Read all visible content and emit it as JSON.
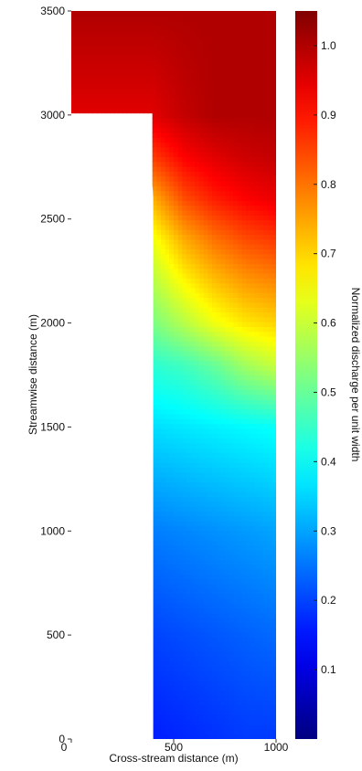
{
  "chart_data": {
    "type": "heatmap",
    "title": "",
    "xlabel": "Cross-stream distance (m)",
    "ylabel": "Streamwise distance (m)",
    "colorbar_label": "Normalized discharge per unit width",
    "xlim": [
      0,
      1000
    ],
    "ylim": [
      0,
      3500
    ],
    "x_ticks": [
      0,
      500,
      1000
    ],
    "y_ticks": [
      0,
      500,
      1000,
      1500,
      2000,
      2500,
      3000,
      3500
    ],
    "colorbar_range": [
      0,
      1.05
    ],
    "colorbar_ticks": [
      0.1,
      0.2,
      0.3,
      0.4,
      0.5,
      0.6,
      0.7,
      0.8,
      0.9,
      1.0
    ],
    "colormap": "jet",
    "obstacle": {
      "description_shape": "quarter-rounded headland",
      "straight_edge_x": 400,
      "top_y": 3000,
      "corner_radius": 400
    },
    "field_samples": {
      "x": [
        400,
        550,
        700,
        850,
        1000
      ],
      "y": [
        0,
        500,
        1000,
        1500,
        1800,
        2000,
        2200,
        2400,
        2600,
        2800,
        3000,
        3500
      ],
      "values": [
        [
          0.16,
          0.17,
          0.18,
          0.19,
          0.19
        ],
        [
          0.2,
          0.21,
          0.22,
          0.23,
          0.24
        ],
        [
          0.26,
          0.27,
          0.28,
          0.29,
          0.3
        ],
        [
          0.36,
          0.37,
          0.38,
          0.39,
          0.4
        ],
        [
          0.44,
          0.46,
          0.5,
          0.56,
          0.6
        ],
        [
          0.52,
          0.58,
          0.64,
          0.68,
          0.7
        ],
        [
          0.58,
          0.66,
          0.72,
          0.76,
          0.78
        ],
        [
          0.64,
          0.74,
          0.8,
          0.84,
          0.86
        ],
        [
          0.74,
          0.84,
          0.89,
          0.92,
          0.94
        ],
        [
          0.86,
          0.92,
          0.95,
          0.97,
          0.98
        ],
        [
          0.95,
          0.98,
          1.0,
          1.0,
          1.0
        ],
        [
          1.0,
          1.0,
          1.0,
          1.0,
          1.0
        ]
      ]
    }
  }
}
